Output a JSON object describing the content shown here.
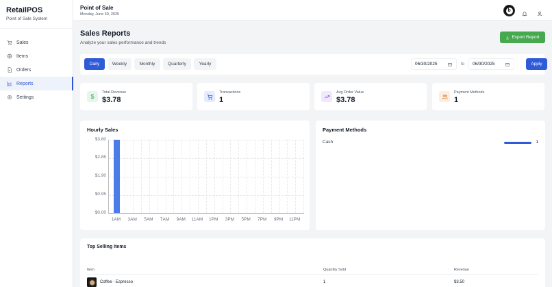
{
  "sidebar": {
    "brand_title": "RetailPOS",
    "brand_subtitle": "Point of Sale System",
    "items": [
      {
        "label": "Sales",
        "icon": "cart-icon",
        "active": false
      },
      {
        "label": "Items",
        "icon": "package-icon",
        "active": false
      },
      {
        "label": "Orders",
        "icon": "file-icon",
        "active": false
      },
      {
        "label": "Reports",
        "icon": "bar-chart-icon",
        "active": true
      },
      {
        "label": "Settings",
        "icon": "gear-icon",
        "active": false
      }
    ]
  },
  "topbar": {
    "title": "Point of Sale",
    "date": "Monday, June 30, 2025",
    "avatar_letter": "b"
  },
  "header": {
    "title": "Sales Reports",
    "subtitle": "Analyze your sales performance and trends",
    "export_label": "Export Report"
  },
  "filters": {
    "periods": [
      "Daily",
      "Weekly",
      "Monthly",
      "Quarterly",
      "Yearly"
    ],
    "active_period": "Daily",
    "start_date": "06/30/2025",
    "end_date": "06/30/2025",
    "to_label": "to",
    "apply_label": "Apply"
  },
  "stats": [
    {
      "label": "Total Revenue",
      "value": "$3.78",
      "icon": "dollar-icon",
      "color": "#3aa757",
      "bg": "#e7f6ea"
    },
    {
      "label": "Transactions",
      "value": "1",
      "icon": "cart-icon",
      "color": "#3b63d9",
      "bg": "#e5ecfb"
    },
    {
      "label": "Avg Order Value",
      "value": "$3.78",
      "icon": "trending-up-icon",
      "color": "#8b4fd8",
      "bg": "#f0e8fb"
    },
    {
      "label": "Payment Methods",
      "value": "1",
      "icon": "users-icon",
      "color": "#e07b2c",
      "bg": "#fdeedf"
    }
  ],
  "hourly_sales": {
    "title": "Hourly Sales"
  },
  "chart_data": {
    "type": "bar",
    "title": "Hourly Sales",
    "xlabel": "",
    "ylabel": "",
    "categories": [
      "1AM",
      "3AM",
      "5AM",
      "7AM",
      "9AM",
      "11AM",
      "1PM",
      "3PM",
      "5PM",
      "7PM",
      "9PM",
      "11PM"
    ],
    "values": [
      3.78,
      0,
      0,
      0,
      0,
      0,
      0,
      0,
      0,
      0,
      0,
      0
    ],
    "yticks": [
      "$3.80",
      "$2.85",
      "$1.90",
      "$0.95",
      "$0.00"
    ],
    "ylim": [
      0,
      3.8
    ],
    "grid": true,
    "bar_color": "#4a7de8"
  },
  "payment_methods": {
    "title": "Payment Methods",
    "rows": [
      {
        "label": "Cash",
        "count": "1"
      }
    ]
  },
  "top_items": {
    "title": "Top Selling Items",
    "columns": [
      "Item",
      "Quantity Sold",
      "Revenue"
    ],
    "rows": [
      {
        "name": "Coffee - Espresso",
        "quantity": "1",
        "revenue": "$3.50"
      }
    ]
  }
}
